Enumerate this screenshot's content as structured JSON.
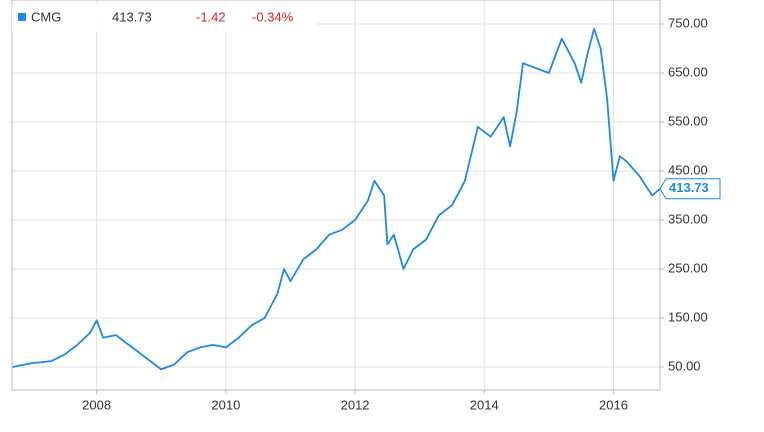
{
  "chart_data": {
    "type": "line",
    "header": {
      "symbol": "CMG",
      "price": 413.73,
      "change": -1.42,
      "change_percent": "-0.34%"
    },
    "x": [
      2006.7,
      2007.0,
      2007.3,
      2007.5,
      2007.7,
      2007.9,
      2008.0,
      2008.1,
      2008.3,
      2008.5,
      2008.7,
      2008.9,
      2009.0,
      2009.2,
      2009.4,
      2009.6,
      2009.8,
      2010.0,
      2010.2,
      2010.4,
      2010.6,
      2010.8,
      2010.9,
      2011.0,
      2011.2,
      2011.4,
      2011.6,
      2011.8,
      2012.0,
      2012.2,
      2012.3,
      2012.45,
      2012.5,
      2012.6,
      2012.75,
      2012.9,
      2013.1,
      2013.3,
      2013.5,
      2013.7,
      2013.9,
      2014.1,
      2014.3,
      2014.4,
      2014.5,
      2014.6,
      2014.8,
      2015.0,
      2015.2,
      2015.4,
      2015.5,
      2015.6,
      2015.7,
      2015.8,
      2015.9,
      2016.0,
      2016.1,
      2016.2,
      2016.4,
      2016.6,
      2016.72
    ],
    "series": [
      {
        "name": "CMG",
        "color": "#1c8ae6",
        "values": [
          50,
          58,
          62,
          75,
          95,
          120,
          145,
          110,
          115,
          95,
          75,
          55,
          45,
          55,
          80,
          90,
          95,
          90,
          110,
          135,
          150,
          200,
          250,
          225,
          270,
          290,
          320,
          330,
          350,
          390,
          430,
          400,
          300,
          320,
          250,
          290,
          310,
          360,
          380,
          430,
          540,
          520,
          560,
          500,
          570,
          670,
          660,
          650,
          720,
          670,
          630,
          690,
          740,
          700,
          600,
          430,
          480,
          470,
          440,
          400,
          413.73
        ]
      }
    ],
    "xlim": [
      2006.69,
      2016.72
    ],
    "xticks": [
      2008,
      2010,
      2012,
      2014,
      2016
    ],
    "ylim": [
      3,
      799
    ],
    "yticks": [
      {
        "value": 50,
        "label": "50.00"
      },
      {
        "value": 150,
        "label": "150.00"
      },
      {
        "value": 250,
        "label": "250.00"
      },
      {
        "value": 350,
        "label": "350.00"
      },
      {
        "value": 450,
        "label": "450.00"
      },
      {
        "value": 550,
        "label": "550.00"
      },
      {
        "value": 650,
        "label": "650.00"
      },
      {
        "value": 750,
        "label": "750.00"
      }
    ],
    "grid": true
  }
}
